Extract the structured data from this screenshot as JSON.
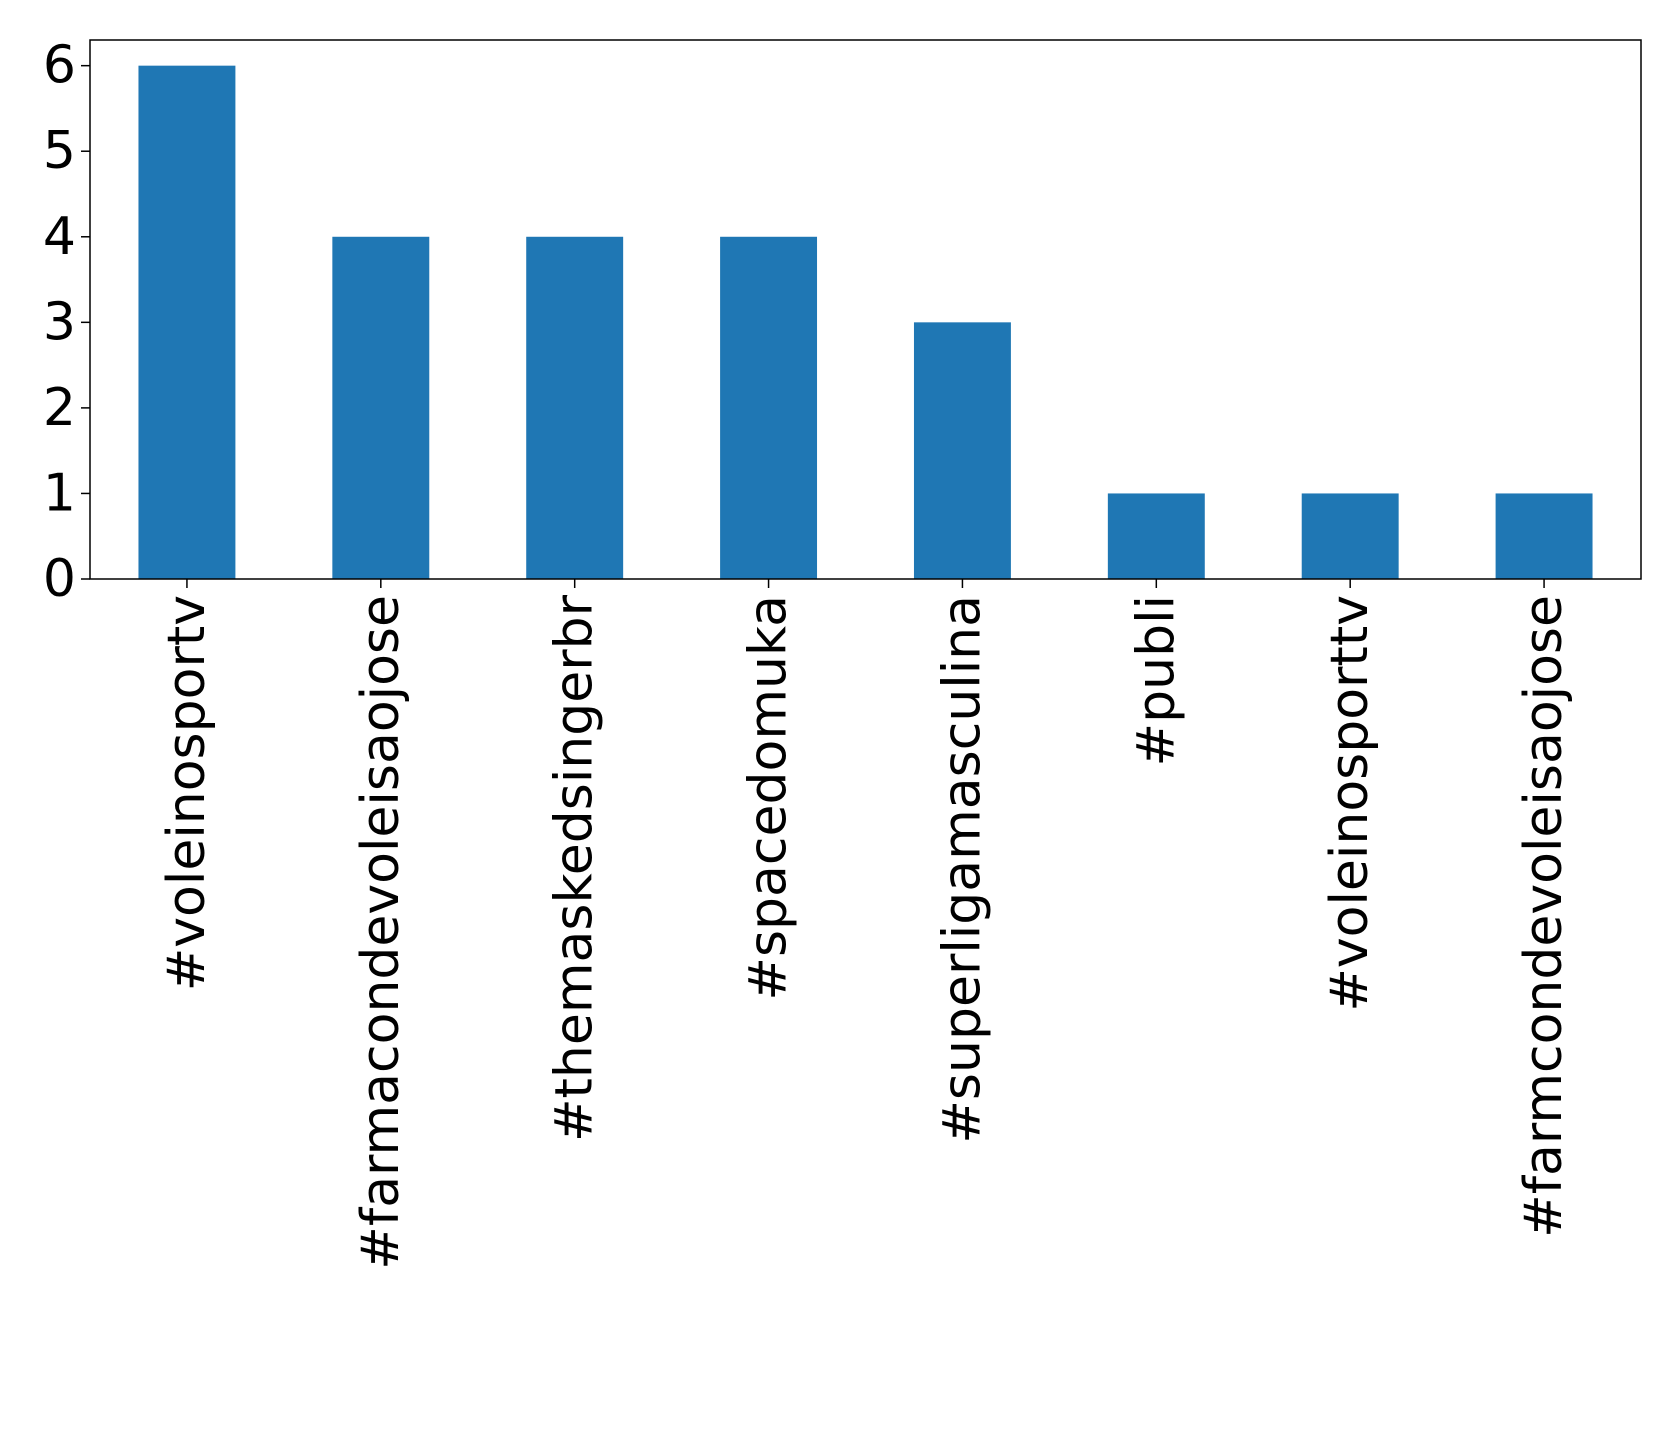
{
  "chart_data": {
    "type": "bar",
    "categories": [
      "#voleinosportv",
      "#farmacondevoleisaojose",
      "#themaskedsingerbr",
      "#spacedomuka",
      "#superligamasculina",
      "#publi",
      "#voleinosporttv",
      "#farmcondevoleisaojose"
    ],
    "values": [
      6,
      4,
      4,
      4,
      3,
      1,
      1,
      1
    ],
    "color": "#1f77b4",
    "ylim": [
      0,
      6.3
    ],
    "yticks": [
      0,
      1,
      2,
      3,
      4,
      5,
      6
    ],
    "grid": false
  }
}
